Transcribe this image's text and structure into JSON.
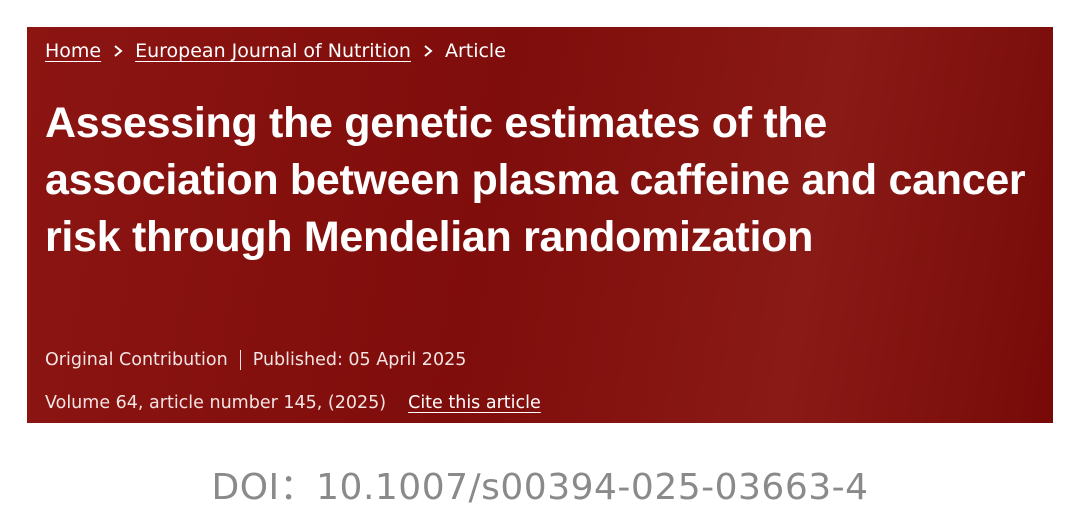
{
  "breadcrumb": {
    "items": [
      "Home",
      "European Journal of Nutrition",
      "Article"
    ]
  },
  "article": {
    "title": "Assessing the genetic estimates of the association between plasma caffeine and cancer risk through Mendelian randomization",
    "article_type": "Original Contribution",
    "published": "Published: 05 April 2025",
    "citation": "Volume 64, article number 145, (2025)",
    "cite_link": "Cite this article"
  },
  "doi": "DOI：10.1007/s00394-025-03663-4"
}
